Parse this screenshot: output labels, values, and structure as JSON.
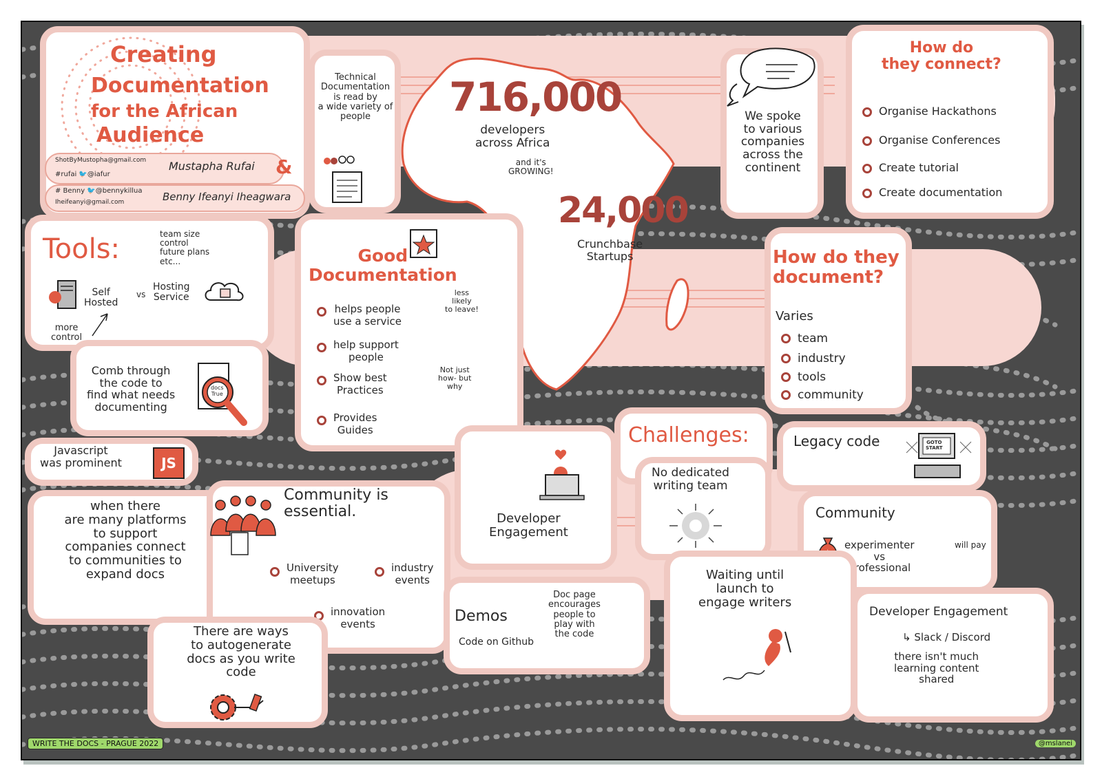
{
  "title": {
    "line1": "Creating",
    "line2": "Documentation",
    "line3": "for the African",
    "line4": "Audience"
  },
  "speakers": {
    "s1_email": "ShotByMustopha@gmail.com",
    "s1_handles": "#rufai   🐦@iafur",
    "s1_name": "Mustapha Rufai",
    "amp": "&",
    "s2_handles": "# Benny  🐦@bennykillua",
    "s2_email": "Iheifeanyi@gmail.com",
    "s2_name": "Benny Ifeanyi Iheagwara"
  },
  "technical": {
    "text": "Technical\nDocumentation\nis read by\na wide variety of\npeople"
  },
  "stats": {
    "developers_number": "716,000",
    "developers_label": "developers\nacross Africa",
    "growing": "and it's\nGROWING!",
    "startups_number": "24,000",
    "startups_label": "Crunchbase\nStartups"
  },
  "spoke": {
    "text": "We spoke\nto various\ncompanies\nacross the\ncontinent"
  },
  "connect": {
    "heading": "How do\nthey connect?",
    "items": [
      "Organise Hackathons",
      "Organise Conferences",
      "Create tutorial",
      "Create documentation"
    ]
  },
  "tools": {
    "heading": "Tools:",
    "note": "team size\ncontrol\nfuture plans\netc...",
    "self_hosted": "Self\nHosted",
    "vs": "vs",
    "hosting": "Hosting\nService",
    "more_control": "more\ncontrol"
  },
  "good_docs": {
    "heading": "Good\nDocumentation",
    "items": [
      "helps people\nuse a service",
      "help support\npeople",
      "Show best\nPractices",
      "Provides\nGuides"
    ],
    "note_less": "less\nlikely\nto leave!",
    "note_why": "Not just\nhow- but\nwhy"
  },
  "document": {
    "heading": "How do they\ndocument?",
    "varies": "Varies",
    "items": [
      "team",
      "industry",
      "tools",
      "community"
    ]
  },
  "comb": {
    "text": "Comb through\nthe code to\nfind what needs\ndocumenting",
    "badge": "docs\nTrue"
  },
  "js": {
    "text": "Javascript\nwas prominent",
    "badge": "JS"
  },
  "platforms": {
    "text": "when there\nare many platforms\nto support\ncompanies connect\nto communities to\nexpand docs"
  },
  "community": {
    "heading": "Community is\nessential.",
    "items": [
      "University\nmeetups",
      "industry\nevents",
      "innovation\nevents"
    ]
  },
  "autogen": {
    "text": "There are ways\nto autogenerate\ndocs as you write\ncode"
  },
  "dev_engagement": {
    "text": "Developer\nEngagement"
  },
  "demos": {
    "heading": "Demos",
    "sub": "Code on Github",
    "note": "Doc page\nencourages\npeople to\nplay with\nthe code"
  },
  "challenges": {
    "heading": "Challenges:",
    "no_team": "No dedicated\nwriting team",
    "legacy": "Legacy code",
    "goto": "GOTO\nSTART",
    "community": "Community",
    "experimenter": "experimenter\nvs\nprofessional",
    "will_pay": "will pay",
    "waiting": "Waiting until\nlaunch to\nengage writers",
    "dev_eng": "Developer Engagement",
    "slack": "↳ Slack / Discord",
    "learning": "there isn't much\nlearning content\nshared"
  },
  "footer": {
    "event": "WRITE THE DOCS - PRAGUE 2022",
    "credit": "@mslanei"
  },
  "colors": {
    "accent": "#e05a43",
    "dark_accent": "#a8433a",
    "card_border": "#f0c9c2",
    "band": "#f7d7d2",
    "background": "#4a4a4a"
  }
}
